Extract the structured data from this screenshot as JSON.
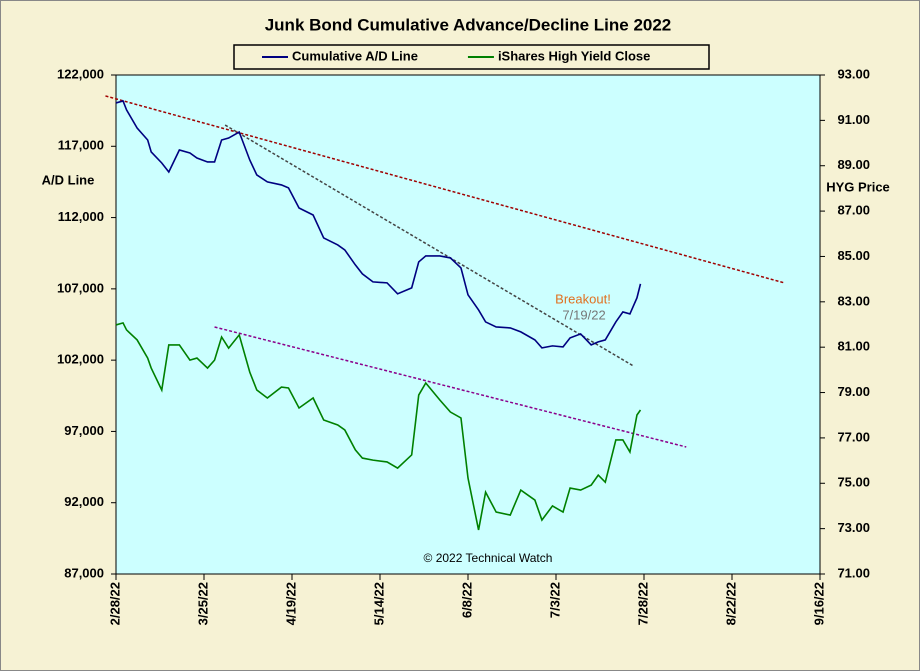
{
  "chart_data": {
    "type": "line",
    "title": "Junk Bond Cumulative  Advance/Decline  Line  2022",
    "ylabel": "A/D Line",
    "y2label": "HYG Price",
    "legend": "top",
    "x": [
      "2022-02-28",
      "2022-03-02",
      "2022-03-03",
      "2022-03-06",
      "2022-03-09",
      "2022-03-10",
      "2022-03-13",
      "2022-03-15",
      "2022-03-18",
      "2022-03-21",
      "2022-03-23",
      "2022-03-26",
      "2022-03-28",
      "2022-03-30",
      "2022-04-01",
      "2022-04-04",
      "2022-04-07",
      "2022-04-09",
      "2022-04-12",
      "2022-04-16",
      "2022-04-18",
      "2022-04-21",
      "2022-04-25",
      "2022-04-28",
      "2022-05-02",
      "2022-05-04",
      "2022-05-07",
      "2022-05-09",
      "2022-05-12",
      "2022-05-16",
      "2022-05-19",
      "2022-05-23",
      "2022-05-25",
      "2022-05-27",
      "2022-05-31",
      "2022-06-03",
      "2022-06-06",
      "2022-06-08",
      "2022-06-11",
      "2022-06-13",
      "2022-06-16",
      "2022-06-20",
      "2022-06-23",
      "2022-06-27",
      "2022-06-29",
      "2022-07-02",
      "2022-07-05",
      "2022-07-07",
      "2022-07-10",
      "2022-07-13",
      "2022-07-15",
      "2022-07-17",
      "2022-07-20",
      "2022-07-22",
      "2022-07-24",
      "2022-07-26",
      "2022-07-27"
    ],
    "series": [
      {
        "name": "Cumulative A/D Line",
        "color": "#000080",
        "axis": "y",
        "values": [
          120040,
          120180,
          119550,
          118280,
          117440,
          116600,
          115830,
          115200,
          116740,
          116530,
          116180,
          115900,
          115900,
          117440,
          117580,
          118000,
          116040,
          114990,
          114500,
          114290,
          114080,
          112670,
          112180,
          110570,
          110080,
          109730,
          108680,
          108050,
          107490,
          107420,
          106650,
          107070,
          108890,
          109310,
          109310,
          109170,
          108470,
          106580,
          105520,
          104680,
          104330,
          104260,
          103980,
          103420,
          102860,
          103000,
          102930,
          103560,
          103840,
          103070,
          103280,
          103420,
          104680,
          105380,
          105240,
          106370,
          107350
        ]
      },
      {
        "name": "iShares High Yield Close",
        "color": "#008000",
        "axis": "y2",
        "values": [
          81.98,
          82.07,
          81.76,
          81.32,
          80.52,
          80.08,
          79.11,
          81.1,
          81.1,
          80.43,
          80.52,
          80.08,
          80.43,
          81.45,
          80.96,
          81.54,
          79.9,
          79.11,
          78.76,
          79.24,
          79.2,
          78.32,
          78.76,
          77.79,
          77.57,
          77.35,
          76.47,
          76.11,
          76.02,
          75.94,
          75.67,
          76.25,
          78.89,
          79.42,
          78.67,
          78.14,
          77.88,
          75.23,
          72.94,
          74.61,
          73.73,
          73.6,
          74.7,
          74.26,
          73.38,
          74.0,
          73.73,
          74.79,
          74.7,
          74.92,
          75.36,
          75.05,
          76.91,
          76.91,
          76.38,
          78.01,
          78.23
        ]
      }
    ],
    "trendlines": [
      {
        "axis": "y",
        "color": "#a00000",
        "x": [
          "2022-02-25",
          "2022-09-06"
        ],
        "values": [
          120530,
          107410
        ]
      },
      {
        "axis": "y",
        "color": "#444444",
        "x": [
          "2022-03-31",
          "2022-07-25"
        ],
        "values": [
          118490,
          101590
        ]
      },
      {
        "axis": "y2",
        "color": "#8b008b",
        "x": [
          "2022-03-28",
          "2022-08-09"
        ],
        "values": [
          81.89,
          76.6
        ]
      }
    ],
    "annotations": [
      {
        "text": "Breakout!",
        "color": "#e07020"
      },
      {
        "text": "7/19/22",
        "color": "#777777"
      },
      {
        "text": "© 2022 Technical Watch",
        "color": "#000000"
      }
    ],
    "xlim": [
      "2022-02-28",
      "2022-09-16"
    ],
    "xticks": [
      {
        "value": "2022-02-28",
        "label": "2/28/22"
      },
      {
        "value": "2022-03-25",
        "label": "3/25/22"
      },
      {
        "value": "2022-04-19",
        "label": "4/19/22"
      },
      {
        "value": "2022-05-14",
        "label": "5/14/22"
      },
      {
        "value": "2022-06-08",
        "label": "6/8/22"
      },
      {
        "value": "2022-07-03",
        "label": "7/3/22"
      },
      {
        "value": "2022-07-28",
        "label": "7/28/22"
      },
      {
        "value": "2022-08-22",
        "label": "8/22/22"
      },
      {
        "value": "2022-09-16",
        "label": "9/16/22"
      }
    ],
    "ylim": [
      87000,
      122000
    ],
    "yticks": [
      {
        "value": 87000,
        "label": "87,000"
      },
      {
        "value": 92000,
        "label": "92,000"
      },
      {
        "value": 97000,
        "label": "97,000"
      },
      {
        "value": 102000,
        "label": "102,000"
      },
      {
        "value": 107000,
        "label": "107,000"
      },
      {
        "value": 112000,
        "label": "112,000"
      },
      {
        "value": 117000,
        "label": "117,000"
      },
      {
        "value": 122000,
        "label": "122,000"
      }
    ],
    "y2lim": [
      71,
      93
    ],
    "y2ticks": [
      {
        "value": 71,
        "label": "71.00"
      },
      {
        "value": 73,
        "label": "73.00"
      },
      {
        "value": 75,
        "label": "75.00"
      },
      {
        "value": 77,
        "label": "77.00"
      },
      {
        "value": 79,
        "label": "79.00"
      },
      {
        "value": 81,
        "label": "81.00"
      },
      {
        "value": 83,
        "label": "83.00"
      },
      {
        "value": 85,
        "label": "85.00"
      },
      {
        "value": 87,
        "label": "87.00"
      },
      {
        "value": 89,
        "label": "89.00"
      },
      {
        "value": 91,
        "label": "91.00"
      },
      {
        "value": 93,
        "label": "93.00"
      }
    ]
  }
}
